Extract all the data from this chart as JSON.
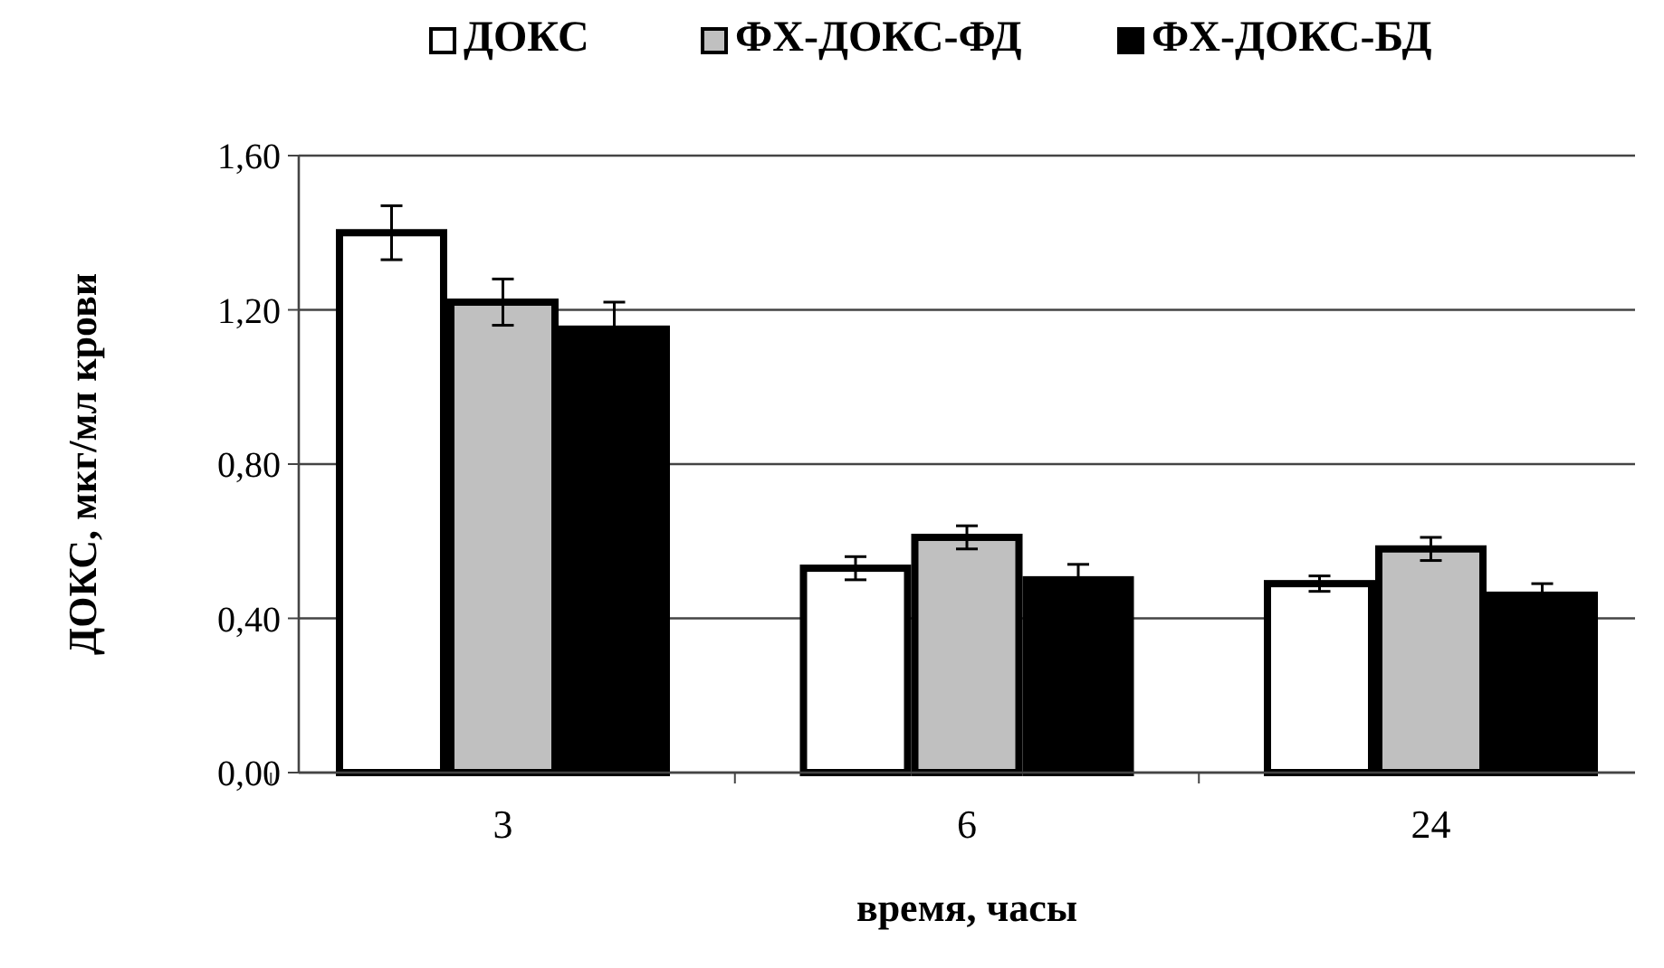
{
  "chart_data": {
    "type": "bar",
    "xlabel": "время, часы",
    "ylabel": "ДОКС, мкг/мл крови",
    "categories": [
      "3",
      "6",
      "24"
    ],
    "series": [
      {
        "name": "ДОКС",
        "color": "#ffffff",
        "values": [
          1.4,
          0.53,
          0.49
        ],
        "errors": [
          0.07,
          0.03,
          0.02
        ]
      },
      {
        "name": "ФХ-ДОКС-ФД",
        "color": "#c0c0c0",
        "values": [
          1.22,
          0.61,
          0.58
        ],
        "errors": [
          0.06,
          0.03,
          0.03
        ]
      },
      {
        "name": "ФХ-ДОКС-БД",
        "color": "#000000",
        "values": [
          1.15,
          0.5,
          0.46
        ],
        "errors": [
          0.07,
          0.04,
          0.03
        ]
      }
    ],
    "ylim": [
      0,
      1.6
    ],
    "yticks": [
      {
        "value": 0,
        "label": "0,00"
      },
      {
        "value": 0.4,
        "label": "0,40"
      },
      {
        "value": 0.8,
        "label": "0,80"
      },
      {
        "value": 1.2,
        "label": "1,20"
      },
      {
        "value": 1.6,
        "label": "1,60"
      }
    ],
    "grid": "y",
    "legend": "top"
  }
}
